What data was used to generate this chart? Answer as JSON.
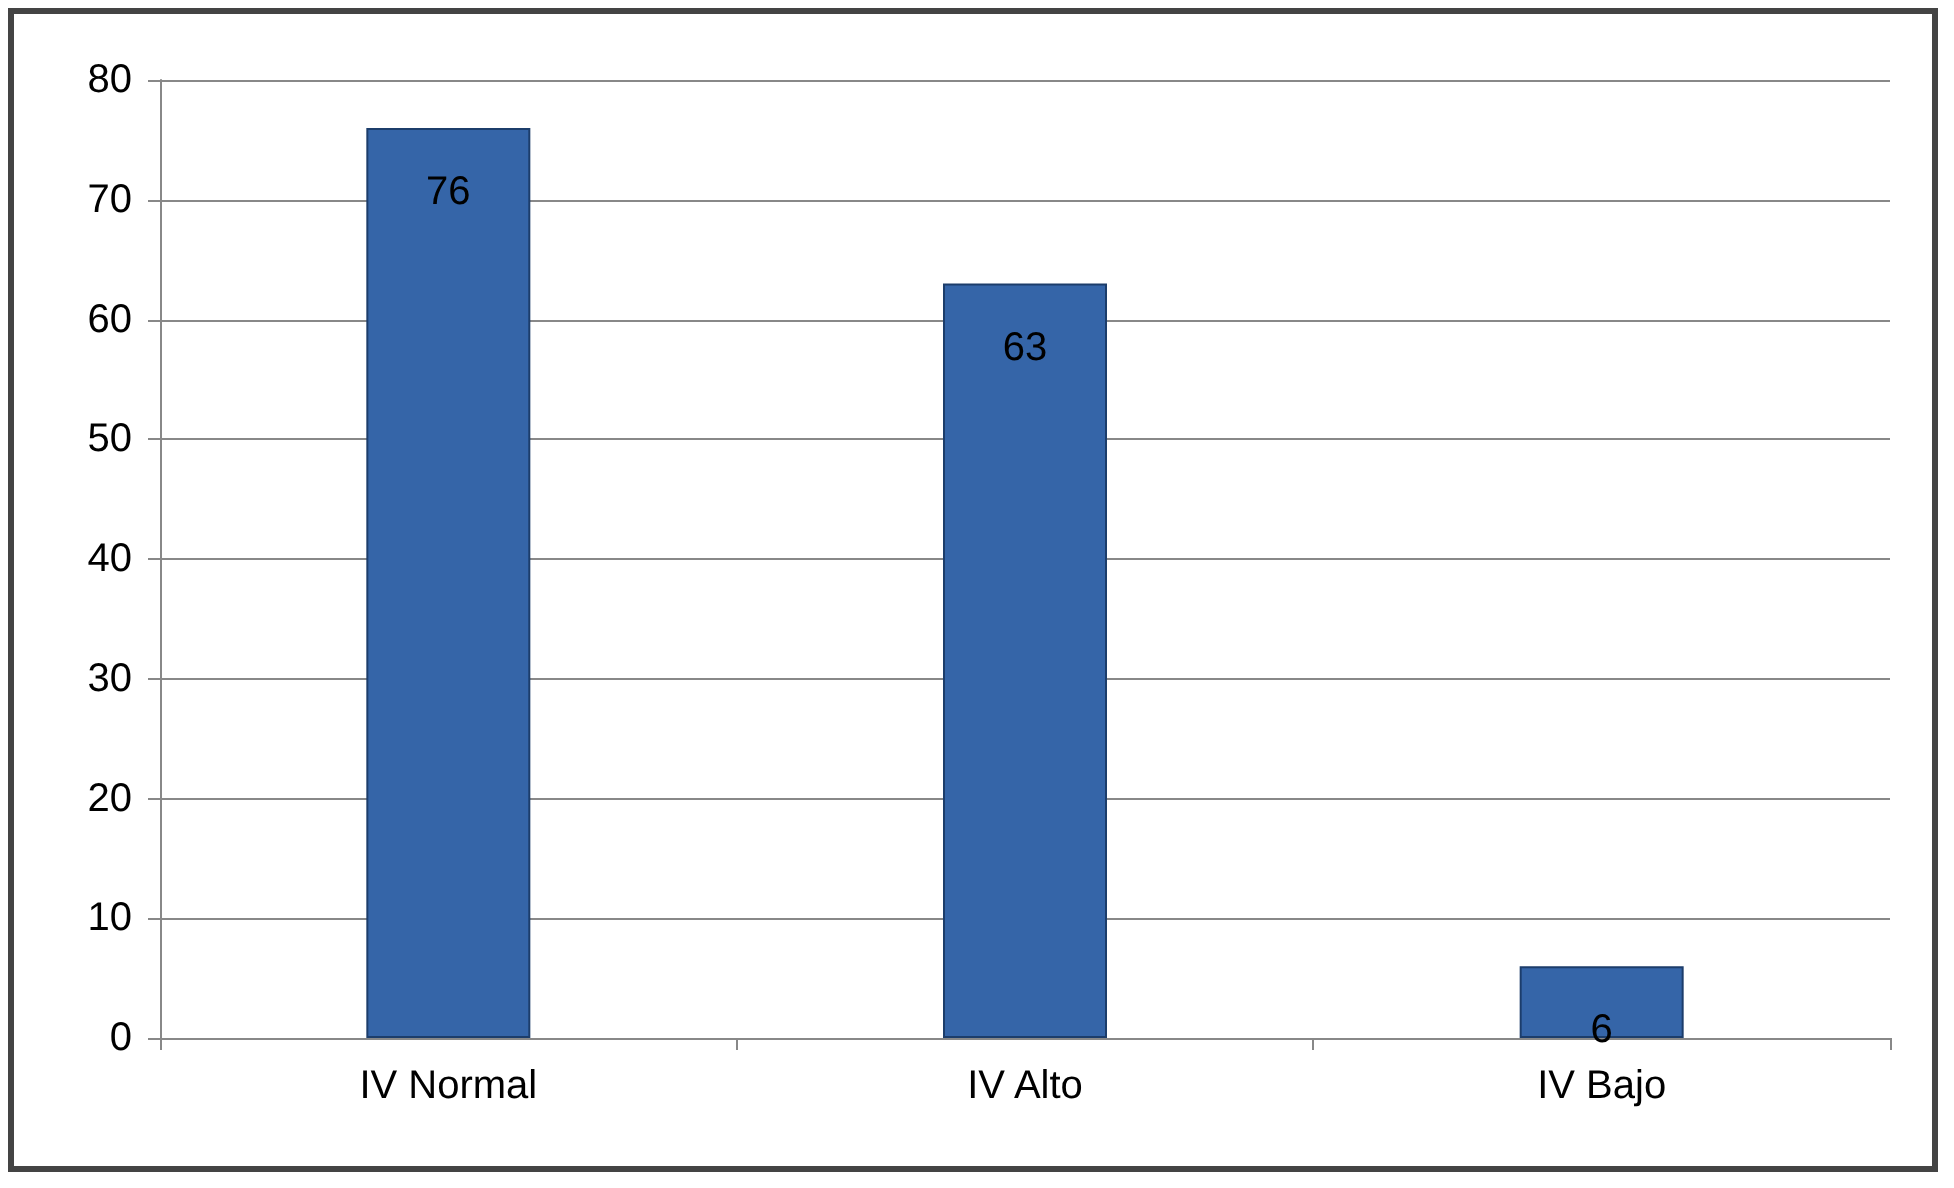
{
  "chart_data": {
    "type": "bar",
    "categories": [
      "IV Normal",
      "IV Alto",
      "IV Bajo"
    ],
    "values": [
      76,
      63,
      6
    ],
    "color": "#3565a8",
    "ylim": [
      0,
      80
    ],
    "yticks": [
      0,
      10,
      20,
      30,
      40,
      50,
      60,
      70,
      80
    ],
    "grid": "y",
    "data_labels": true
  }
}
